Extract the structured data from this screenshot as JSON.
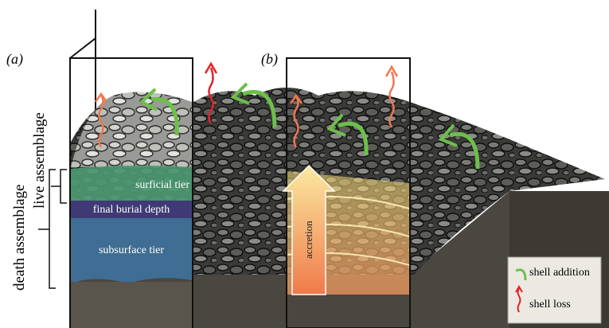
{
  "panels": {
    "a": "(a)",
    "b": "(b)"
  },
  "axis_labels": {
    "death": "death assemblage",
    "live": "live assemblage"
  },
  "layers": {
    "surficial": "surficial tier",
    "burial": "final burial depth",
    "subsurface": "subsurface tier"
  },
  "arrow_label": "accretion",
  "legend": {
    "addition": "shell addition",
    "loss": "shell loss"
  }
}
